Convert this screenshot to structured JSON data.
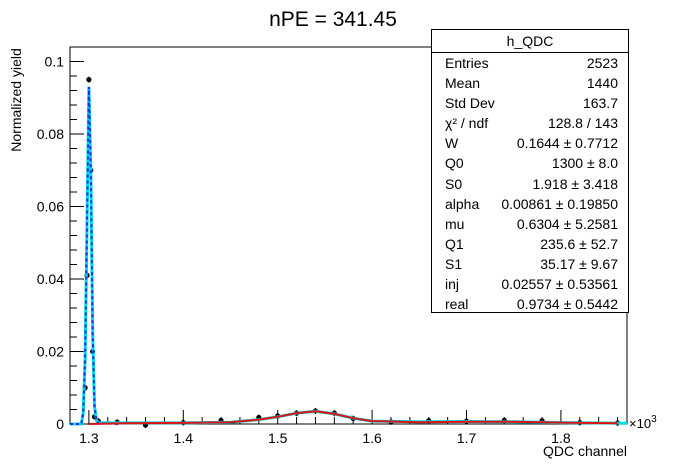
{
  "chart_data": {
    "type": "histogram",
    "title": "nPE = 341.45",
    "xlabel": "QDC channel",
    "ylabel": "Normalized yield",
    "x_multiplier_label": "×10",
    "x_multiplier_exp": "3",
    "xlim": [
      1.28,
      1.87
    ],
    "ylim": [
      0,
      0.104
    ],
    "x_ticks": [
      "1.3",
      "1.4",
      "1.5",
      "1.6",
      "1.7",
      "1.8"
    ],
    "y_ticks": [
      "0",
      "0.02",
      "0.04",
      "0.06",
      "0.08",
      "0.1"
    ],
    "series": [
      {
        "kind": "data_points",
        "color": "#000000",
        "x": [
          1.296,
          1.298,
          1.3,
          1.302,
          1.304,
          1.306,
          1.31,
          1.33,
          1.36,
          1.4,
          1.44,
          1.48,
          1.5,
          1.52,
          1.54,
          1.56,
          1.58,
          1.62,
          1.66,
          1.7,
          1.74,
          1.78,
          1.82,
          1.86
        ],
        "y": [
          0.01,
          0.041,
          0.095,
          0.07,
          0.02,
          0.002,
          0.0008,
          0.0005,
          -0.0003,
          0.0004,
          0.001,
          0.0018,
          0.0022,
          0.003,
          0.0036,
          0.003,
          0.0015,
          0.0006,
          0.0009,
          0.0008,
          0.001,
          0.0009,
          0.0004,
          0.0003
        ]
      },
      {
        "kind": "fit_total",
        "color": "#00d8e8",
        "style": "solid",
        "x": [
          1.28,
          1.292,
          1.294,
          1.296,
          1.298,
          1.3,
          1.302,
          1.304,
          1.306,
          1.308,
          1.31,
          1.33,
          1.4,
          1.45,
          1.48,
          1.5,
          1.52,
          1.54,
          1.56,
          1.58,
          1.6,
          1.65,
          1.7,
          1.75,
          1.8,
          1.87
        ],
        "y": [
          0.0,
          0.0,
          0.003,
          0.018,
          0.055,
          0.093,
          0.07,
          0.025,
          0.005,
          0.001,
          0.0004,
          0.0003,
          0.0003,
          0.0005,
          0.0012,
          0.002,
          0.003,
          0.0035,
          0.0028,
          0.0016,
          0.0008,
          0.0006,
          0.0007,
          0.0006,
          0.0004,
          0.0002
        ]
      },
      {
        "kind": "fit_pedestal",
        "color": "#1a2ee6",
        "style": "dashed",
        "x": [
          1.28,
          1.292,
          1.294,
          1.296,
          1.298,
          1.3,
          1.302,
          1.304,
          1.306,
          1.308,
          1.31,
          1.33
        ],
        "y": [
          0.0,
          0.0,
          0.003,
          0.018,
          0.055,
          0.093,
          0.07,
          0.025,
          0.005,
          0.001,
          0.0002,
          0.0
        ]
      },
      {
        "kind": "fit_signal",
        "color": "#e01010",
        "style": "solid",
        "x": [
          1.3,
          1.34,
          1.4,
          1.45,
          1.48,
          1.5,
          1.52,
          1.54,
          1.56,
          1.58,
          1.6,
          1.65,
          1.7,
          1.75,
          1.8,
          1.86
        ],
        "y": [
          0.0,
          0.0002,
          0.0003,
          0.0005,
          0.0012,
          0.002,
          0.003,
          0.0035,
          0.0028,
          0.0016,
          0.0008,
          0.0005,
          0.0006,
          0.0006,
          0.0004,
          0.0002
        ]
      }
    ]
  },
  "stats": {
    "title": "h_QDC",
    "rows": [
      {
        "label": "Entries",
        "value": "2523"
      },
      {
        "label": "Mean",
        "value": "1440"
      },
      {
        "label": "Std Dev",
        "value": "163.7"
      },
      {
        "label": "χ² / ndf",
        "value": "128.8 / 143"
      },
      {
        "label": "W",
        "value": "0.1644 ± 0.7712"
      },
      {
        "label": "Q0",
        "value": "1300 ± 8.0"
      },
      {
        "label": "S0",
        "value": "1.918 ± 3.418"
      },
      {
        "label": "alpha",
        "value": "0.00861 ± 0.19850"
      },
      {
        "label": "mu",
        "value": "0.6304 ± 5.2581"
      },
      {
        "label": "Q1",
        "value": "235.6 ± 52.7"
      },
      {
        "label": "S1",
        "value": "35.17 ± 9.67"
      },
      {
        "label": "inj",
        "value": "0.02557 ± 0.53561"
      },
      {
        "label": "real",
        "value": "0.9734 ± 0.5442"
      }
    ]
  }
}
